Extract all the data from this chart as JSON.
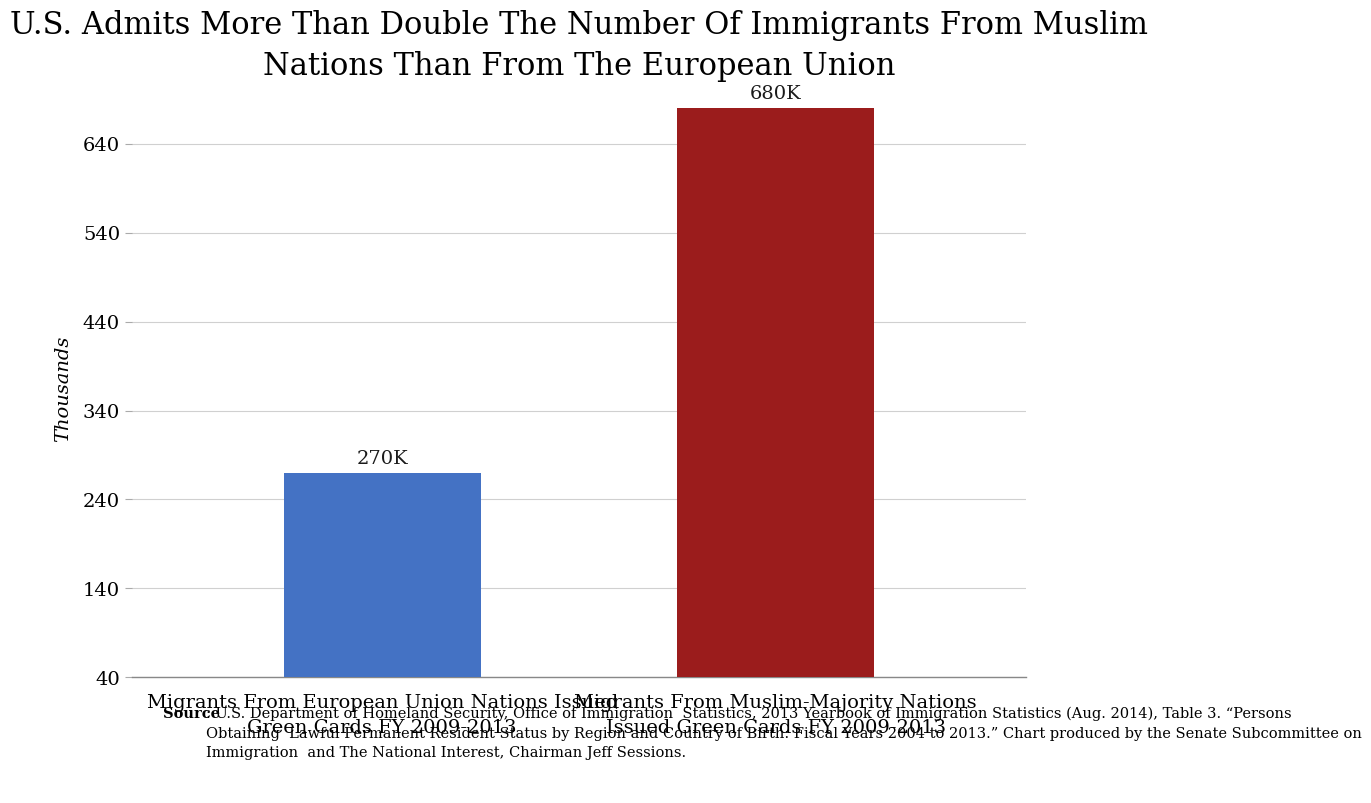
{
  "title": "U.S. Admits More Than Double The Number Of Immigrants From Muslim\nNations Than From The European Union",
  "categories": [
    "Migrants From European Union Nations Issued\nGreen Cards FY 2009-2013",
    "Migrants From Muslim-Majority Nations\nIssued Green Cards FY 2009-2013"
  ],
  "values": [
    270,
    680
  ],
  "bar_colors": [
    "#4472c4",
    "#9b1c1c"
  ],
  "bar_labels": [
    "270K",
    "680K"
  ],
  "ylabel": "Thousands",
  "ylim_min": 40,
  "ylim_max": 690,
  "yticks": [
    40,
    140,
    240,
    340,
    440,
    540,
    640
  ],
  "background_color": "#ffffff",
  "title_fontsize": 22,
  "axis_label_fontsize": 14,
  "tick_fontsize": 14,
  "bar_label_fontsize": 14,
  "x_positions": [
    0.28,
    0.72
  ],
  "bar_width": 0.22,
  "source_bold": "Source",
  "source_rest": ": U.S. Department of Homeland Security, Office of Immigration  Statistics, 2013 Yearbook of Immigration Statistics (Aug. 2014), Table 3. “Persons\nObtaining  Lawful Permanent Resident Status by Region and Country of Birth: Fiscal Years 2004 to 2013.” Chart produced by the Senate Subcommittee on\nImmigration  and The National Interest, Chairman Jeff Sessions.",
  "source_fontsize": 10.5
}
